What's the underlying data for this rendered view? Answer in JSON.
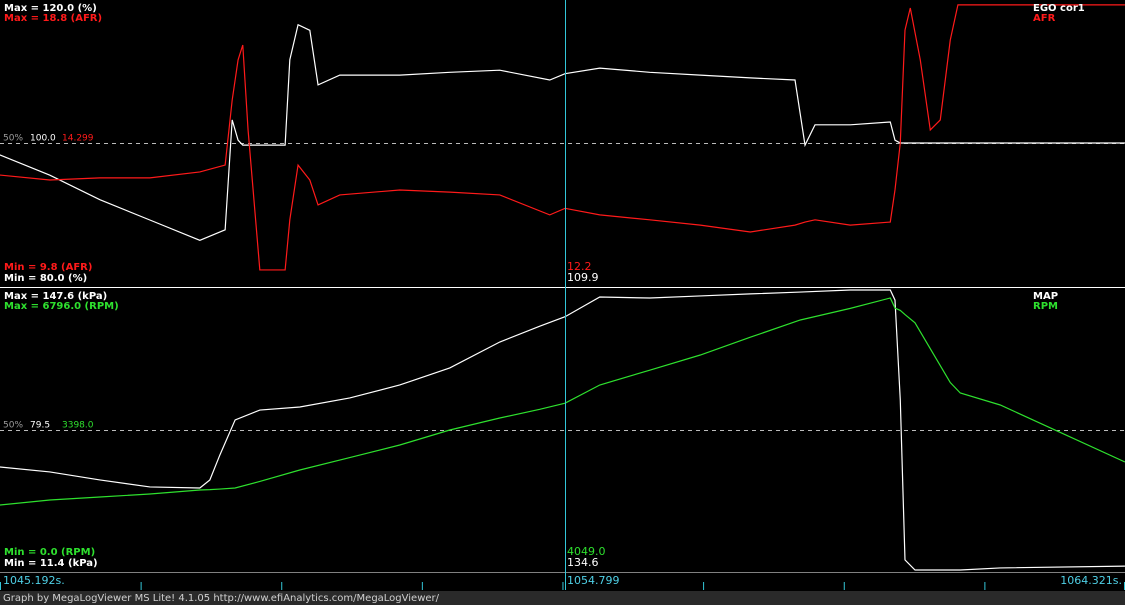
{
  "chart_data": [
    {
      "type": "line",
      "x": [
        1045.19,
        1046.04,
        1046.89,
        1047.74,
        1048.59,
        1049.02,
        1049.14,
        1049.24,
        1049.32,
        1049.41,
        1049.61,
        1050.04,
        1050.12,
        1050.26,
        1050.46,
        1050.6,
        1050.97,
        1051.99,
        1052.84,
        1053.69,
        1054.54,
        1054.8,
        1055.39,
        1056.24,
        1057.1,
        1057.95,
        1058.71,
        1058.88,
        1059.05,
        1059.65,
        1060.33,
        1060.41,
        1060.5,
        1060.58,
        1060.67,
        1060.84,
        1061.01,
        1061.18,
        1061.35,
        1061.48,
        1062.2,
        1064.32
      ],
      "xlim": [
        1045.192,
        1064.321
      ],
      "ylim": [
        80,
        120
      ],
      "yticks": [
        {
          "value": 80,
          "label": "Min = 80.0 (%)"
        },
        {
          "value": 100,
          "label": "100.0"
        },
        {
          "value": 120,
          "label": "Max = 120.0 (%)"
        }
      ],
      "y2lim": [
        9.8,
        18.8
      ],
      "y2ticks": [
        {
          "value": 9.8,
          "label": "Min = 9.8 (AFR)"
        },
        14.299,
        {
          "value": 18.8,
          "label": "Max = 18.8 (AFR)"
        }
      ],
      "mid_label": "50%",
      "series": [
        {
          "name": "EGO cor1",
          "color": "#ffffff",
          "axis": "y",
          "cursor_value": 109.9,
          "values": [
            98.3,
            95.4,
            91.9,
            89.0,
            86.1,
            87.6,
            103.3,
            100.4,
            99.7,
            99.7,
            99.7,
            99.7,
            111.9,
            116.9,
            116.1,
            108.3,
            109.7,
            109.7,
            110.1,
            110.4,
            109.0,
            109.9,
            110.7,
            110.1,
            109.7,
            109.3,
            109.0,
            99.7,
            102.6,
            102.6,
            103.0,
            100.4,
            100.0,
            100.0,
            100.0,
            100.0,
            100.0,
            100.0,
            100.0,
            100.0,
            100.0,
            100.0
          ]
        },
        {
          "name": "AFR",
          "color": "#ff1a1a",
          "axis": "y2",
          "cursor_value": 12.2,
          "values": [
            13.27,
            13.11,
            13.18,
            13.18,
            13.37,
            13.59,
            15.68,
            16.97,
            17.45,
            14.72,
            10.22,
            10.22,
            11.83,
            13.59,
            13.11,
            12.31,
            12.63,
            12.79,
            12.72,
            12.63,
            11.99,
            12.2,
            11.99,
            11.83,
            11.66,
            11.44,
            11.66,
            11.76,
            11.83,
            11.66,
            11.76,
            12.79,
            14.3,
            17.93,
            18.64,
            16.97,
            14.72,
            15.04,
            17.61,
            18.74,
            18.74,
            18.74
          ]
        }
      ]
    },
    {
      "type": "line",
      "x": [
        1045.19,
        1046.04,
        1046.89,
        1047.74,
        1048.59,
        1048.76,
        1048.93,
        1049.19,
        1049.61,
        1050.29,
        1051.14,
        1051.99,
        1052.84,
        1053.69,
        1054.37,
        1054.8,
        1055.39,
        1056.24,
        1057.1,
        1057.95,
        1058.8,
        1059.65,
        1060.33,
        1060.41,
        1060.5,
        1060.58,
        1060.75,
        1061.35,
        1061.52,
        1062.2,
        1064.32
      ],
      "xlim": [
        1045.192,
        1064.321
      ],
      "xticks": [
        {
          "value": 1045.192,
          "label": "1045.192s."
        },
        {
          "value": 1064.321,
          "label": "1064.321s."
        }
      ],
      "xminor_ticks": [
        1047.583,
        1049.974,
        1052.365,
        1054.756,
        1057.147,
        1059.539,
        1061.93
      ],
      "cursor_x": 1054.799,
      "ylim": [
        11.4,
        147.6
      ],
      "yticks": [
        {
          "value": 11.4,
          "label": "Min = 11.4 (kPa)"
        },
        79.5,
        {
          "value": 147.6,
          "label": "Max = 147.6 (kPa)"
        }
      ],
      "y2lim": [
        0,
        6796
      ],
      "y2ticks": [
        {
          "value": 0,
          "label": "Min = 0.0 (RPM)"
        },
        {
          "value": 3398,
          "label": "3398.0"
        },
        {
          "value": 6796,
          "label": "Max = 6796.0 (RPM)"
        }
      ],
      "mid_label": "50%",
      "series": [
        {
          "name": "MAP",
          "color": "#ffffff",
          "axis": "y",
          "cursor_value": 134.6,
          "values": [
            61.5,
            59.1,
            55.2,
            51.8,
            51.3,
            55.2,
            67.3,
            84.4,
            89.2,
            90.7,
            95.1,
            101.4,
            109.7,
            122.3,
            130.0,
            134.6,
            144.2,
            143.7,
            144.7,
            145.7,
            146.6,
            147.6,
            147.6,
            142.7,
            94.1,
            16.3,
            11.4,
            11.4,
            11.4,
            12.4,
            13.3
          ]
        },
        {
          "name": "RPM",
          "color": "#2ee02e",
          "axis": "y2",
          "cursor_value": {
            "value": 4049,
            "label": "4049.0"
          },
          "values": [
            1578,
            1699,
            1772,
            1845,
            1942,
            1950,
            1965,
            1990,
            2150,
            2427,
            2730,
            3034,
            3398,
            3689,
            3900,
            4049,
            4490,
            4850,
            5218,
            5650,
            6068,
            6350,
            6602,
            6359,
            6300,
            6200,
            6000,
            4550,
            4296,
            4005,
            2621
          ]
        }
      ]
    }
  ],
  "footer": "Graph by MegaLogViewer MS Lite! 4.1.05 http://www.efiAnalytics.com/MegaLogViewer/"
}
